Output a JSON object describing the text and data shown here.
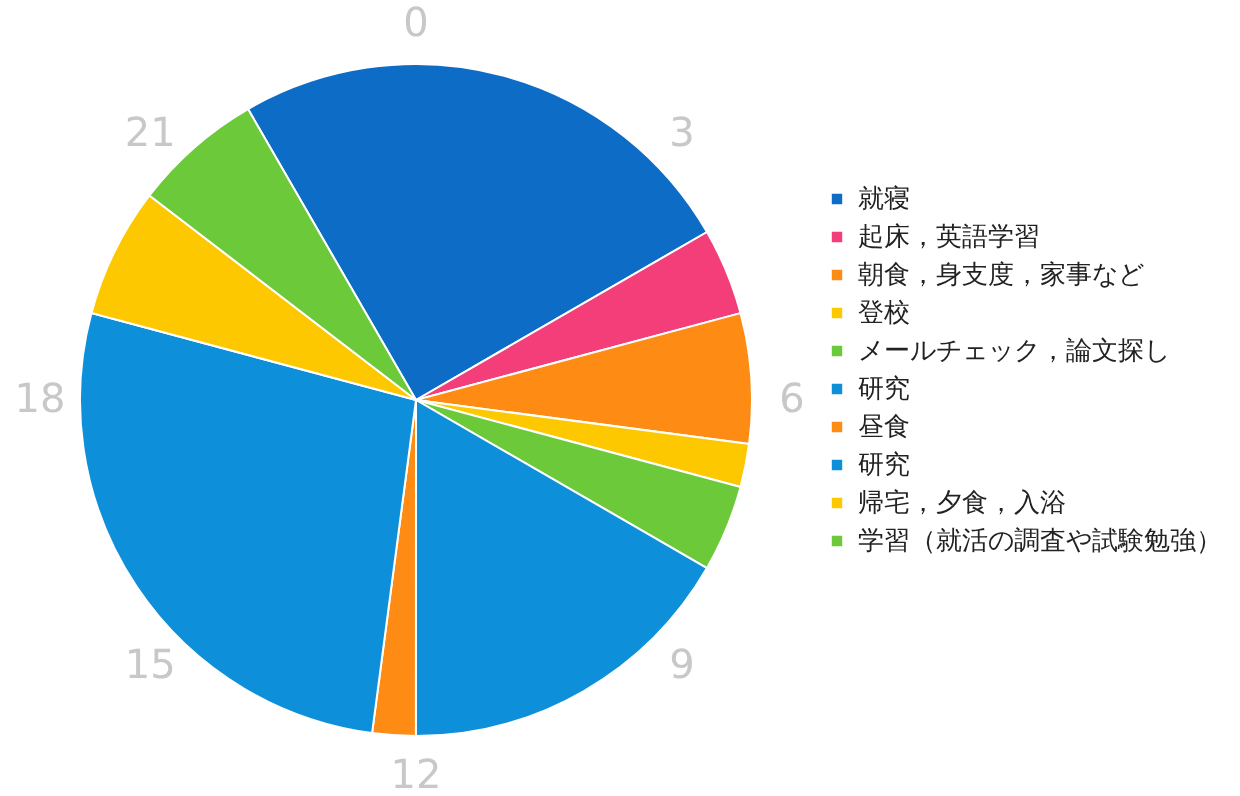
{
  "chart_data": {
    "type": "pie",
    "categories": [
      "就寝",
      "起床，英語学習",
      "朝食，身支度，家事など",
      "登校",
      "メールチェック，論文探し",
      "研究",
      "昼食",
      "研究",
      "帰宅，夕食，入浴",
      "学習（就活の調査や試験勉強）"
    ],
    "values": [
      25,
      4.17,
      6.25,
      2.08,
      4.17,
      16.67,
      2.08,
      27.08,
      6.25,
      6.25
    ],
    "colors": [
      "#0d6cc6",
      "#f43e7a",
      "#fd8b14",
      "#fec800",
      "#6cc93a",
      "#0d8fd9",
      "#fd8b14",
      "#0d8fd9",
      "#fec800",
      "#6cc93a"
    ],
    "annotations": [
      "0",
      "3",
      "6",
      "9",
      "12",
      "15",
      "18",
      "21"
    ],
    "legend": "right"
  }
}
